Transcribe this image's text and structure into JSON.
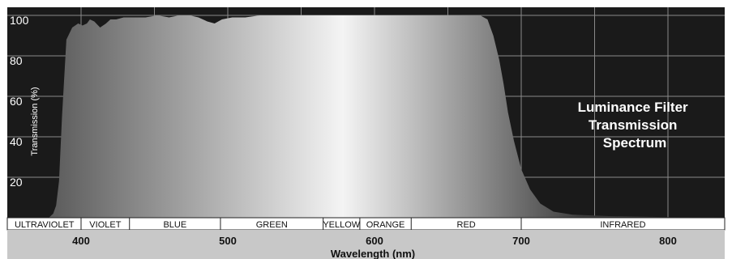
{
  "chart_data": {
    "type": "area",
    "title_lines": [
      "Luminance Filter",
      "Transmission",
      "Spectrum"
    ],
    "xlabel": "Wavelength (nm)",
    "ylabel": "Transmission (%)",
    "xlim": [
      350,
      900
    ],
    "ylim": [
      0,
      105
    ],
    "x_ticks": [
      400,
      500,
      600,
      700,
      800
    ],
    "y_ticks": [
      20,
      40,
      60,
      80,
      100
    ],
    "grid": true,
    "colors": {
      "background": "#1a1a1a",
      "grid": "#8a8a8a",
      "fill_light": "#f2f2f2",
      "fill_dark": "#4a4a4a",
      "band_bar": "#ffffff",
      "axis_bar": "#c8c8c8"
    },
    "bands": [
      {
        "name": "ULTRAVIOLET",
        "start": 350,
        "end": 400
      },
      {
        "name": "VIOLET",
        "start": 400,
        "end": 433
      },
      {
        "name": "BLUE",
        "start": 433,
        "end": 495
      },
      {
        "name": "GREEN",
        "start": 495,
        "end": 565
      },
      {
        "name": "YELLOW",
        "start": 565,
        "end": 590
      },
      {
        "name": "ORANGE",
        "start": 590,
        "end": 625
      },
      {
        "name": "RED",
        "start": 625,
        "end": 700
      },
      {
        "name": "INFRARED",
        "start": 700,
        "end": 900
      }
    ],
    "series": [
      {
        "x": [
          350,
          378,
          381,
          383,
          385,
          387,
          390,
          394,
          398,
          401,
          404,
          406,
          409,
          413,
          417,
          420,
          424,
          429,
          436,
          444,
          452,
          460,
          467,
          474,
          480,
          486,
          491,
          496,
          503,
          512,
          522,
          535,
          550,
          565,
          580,
          600,
          620,
          640,
          660,
          672,
          677,
          681,
          685,
          688,
          691,
          695,
          700,
          706,
          713,
          722,
          735,
          760,
          800,
          850,
          900
        ],
        "y": [
          0,
          0,
          2,
          6,
          18,
          50,
          88,
          94,
          96,
          95,
          96,
          98,
          97,
          94,
          96,
          98,
          98,
          99,
          99,
          99,
          100,
          99,
          100,
          100,
          99,
          97,
          96,
          98,
          99,
          99,
          100,
          100,
          100,
          100,
          100,
          100,
          100,
          100,
          100,
          100,
          98,
          90,
          78,
          66,
          52,
          38,
          24,
          14,
          7,
          3,
          1.5,
          0.8,
          0.3,
          0.2,
          0.2
        ]
      }
    ]
  }
}
